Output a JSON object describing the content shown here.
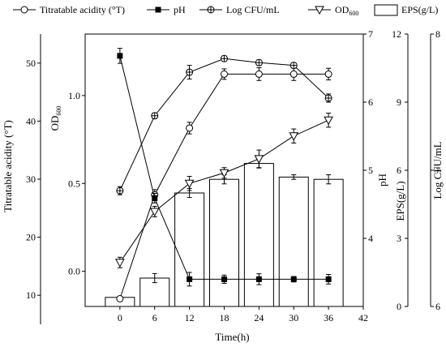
{
  "chart_data": {
    "type": "bar",
    "x": [
      0,
      6,
      12,
      18,
      24,
      30,
      36
    ],
    "xlabel": "Time(h)",
    "xticks": [
      0,
      6,
      12,
      18,
      24,
      30,
      36,
      42
    ],
    "xlim": [
      -6,
      42
    ],
    "axes": {
      "titratable": {
        "label": "Titratable acidity  (°T)",
        "ylim": [
          5,
          55
        ],
        "ticks": [
          10,
          20,
          30,
          40,
          50
        ]
      },
      "od": {
        "label": "OD600",
        "ylim": [
          -0.2,
          1.35
        ],
        "ticks": [
          0.0,
          0.5,
          1.0
        ],
        "tick_labels": [
          "0.0",
          "0.5",
          "1.0"
        ]
      },
      "ph": {
        "label": "pH",
        "ylim": [
          3,
          7
        ],
        "ticks": [
          4,
          5,
          6,
          7
        ]
      },
      "eps": {
        "label": "EPS(g/L)",
        "ylim": [
          0,
          12
        ],
        "ticks": [
          0,
          3,
          6,
          9,
          12
        ]
      },
      "logcfu": {
        "label": "Log CFU/mL",
        "ylim": [
          6,
          8
        ],
        "ticks": [
          6,
          7,
          8
        ]
      }
    },
    "series": [
      {
        "name": "EPS(g/L)",
        "type": "bar",
        "axis": "eps",
        "values": [
          0.4,
          1.25,
          5.0,
          5.6,
          6.3,
          5.7,
          5.6
        ],
        "errors": [
          0.0,
          0.2,
          0.2,
          0.2,
          0.2,
          0.1,
          0.2
        ]
      },
      {
        "name": "Titratable acidity  (°T)",
        "type": "line",
        "marker": "circle",
        "axis": "titratable",
        "values": [
          9.4,
          27.3,
          38.8,
          48.1,
          48.1,
          48.1,
          48.1
        ],
        "errors": [
          0.4,
          0.9,
          1.0,
          0.9,
          1.1,
          1.1,
          1.0
        ]
      },
      {
        "name": "pH",
        "type": "line",
        "marker": "square",
        "axis": "ph",
        "values": [
          6.68,
          4.59,
          3.4,
          3.4,
          3.4,
          3.4,
          3.4
        ],
        "errors": [
          0.11,
          0.07,
          0.1,
          0.06,
          0.08,
          0.04,
          0.07
        ]
      },
      {
        "name": "Log CFU/mL",
        "type": "line",
        "marker": "circle-plus",
        "axis": "logcfu",
        "values": [
          6.85,
          7.4,
          7.72,
          7.82,
          7.79,
          7.77,
          7.53
        ],
        "errors": [
          0.03,
          0.02,
          0.05,
          0.02,
          0.02,
          0.02,
          0.03
        ]
      },
      {
        "name": "OD600",
        "type": "line",
        "marker": "triangle-down",
        "axis": "od",
        "values": [
          0.05,
          0.34,
          0.5,
          0.56,
          0.64,
          0.77,
          0.86
        ],
        "errors": [
          0.03,
          0.03,
          0.04,
          0.03,
          0.05,
          0.04,
          0.04
        ]
      }
    ],
    "legend": {
      "placement": "top",
      "entries": [
        {
          "label": "Titratable acidity  (°T)",
          "marker": "circle"
        },
        {
          "label": "pH",
          "marker": "square"
        },
        {
          "label": "Log CFU/mL",
          "marker": "circle-plus"
        },
        {
          "label": "OD",
          "sub": "600",
          "marker": "triangle-down"
        },
        {
          "label": "EPS(g/L)",
          "marker": "bar"
        }
      ]
    },
    "grid": false
  }
}
